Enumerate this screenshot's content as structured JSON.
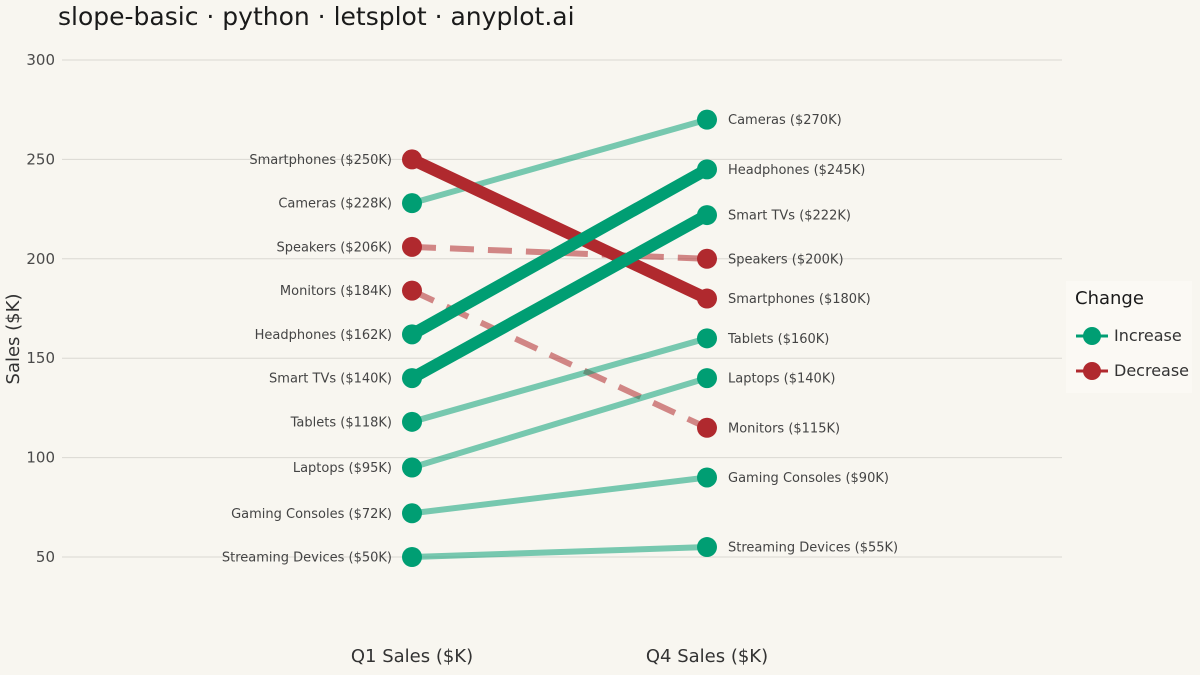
{
  "title": "slope-basic · python · letsplot · anyplot.ai",
  "chart_data": {
    "type": "line",
    "title": "slope-basic · python · letsplot · anyplot.ai",
    "xlabel": "",
    "ylabel": "Sales ($K)",
    "categories": [
      "Q1 Sales ($K)",
      "Q4 Sales ($K)"
    ],
    "ylim": [
      25,
      325
    ],
    "yticks": [
      "50",
      "100",
      "150",
      "200",
      "250",
      "300"
    ],
    "grid": true,
    "legend_position": "right",
    "legend": {
      "title": "Change",
      "entries": [
        {
          "label": "Increase",
          "color": "#009E73"
        },
        {
          "label": "Decrease",
          "color": "#B0292E"
        }
      ]
    },
    "series": [
      {
        "name": "Smartphones",
        "values": [
          250,
          180
        ],
        "change": "Decrease",
        "emphasis": "major",
        "labels": [
          "Smartphones ($250K)",
          "Smartphones ($180K)"
        ]
      },
      {
        "name": "Cameras",
        "values": [
          228,
          270
        ],
        "change": "Increase",
        "emphasis": "minor",
        "labels": [
          "Cameras ($228K)",
          "Cameras ($270K)"
        ]
      },
      {
        "name": "Speakers",
        "values": [
          206,
          200
        ],
        "change": "Decrease",
        "emphasis": "minor",
        "labels": [
          "Speakers ($206K)",
          "Speakers ($200K)"
        ]
      },
      {
        "name": "Monitors",
        "values": [
          184,
          115
        ],
        "change": "Decrease",
        "emphasis": "minor",
        "labels": [
          "Monitors ($184K)",
          "Monitors ($115K)"
        ]
      },
      {
        "name": "Headphones",
        "values": [
          162,
          245
        ],
        "change": "Increase",
        "emphasis": "major",
        "labels": [
          "Headphones ($162K)",
          "Headphones ($245K)"
        ]
      },
      {
        "name": "Smart TVs",
        "values": [
          140,
          222
        ],
        "change": "Increase",
        "emphasis": "major",
        "labels": [
          "Smart TVs ($140K)",
          "Smart TVs ($222K)"
        ]
      },
      {
        "name": "Tablets",
        "values": [
          118,
          160
        ],
        "change": "Increase",
        "emphasis": "minor",
        "labels": [
          "Tablets ($118K)",
          "Tablets ($160K)"
        ]
      },
      {
        "name": "Laptops",
        "values": [
          95,
          140
        ],
        "change": "Increase",
        "emphasis": "minor",
        "labels": [
          "Laptops ($95K)",
          "Laptops ($140K)"
        ]
      },
      {
        "name": "Gaming Consoles",
        "values": [
          72,
          90
        ],
        "change": "Increase",
        "emphasis": "minor",
        "labels": [
          "Gaming Consoles ($72K)",
          "Gaming Consoles ($90K)"
        ]
      },
      {
        "name": "Streaming Devices",
        "values": [
          50,
          55
        ],
        "change": "Increase",
        "emphasis": "minor",
        "labels": [
          "Streaming Devices ($50K)",
          "Streaming Devices ($55K)"
        ]
      }
    ]
  },
  "colors": {
    "increase": "#009E73",
    "decrease": "#B0292E",
    "background": "#F8F6F0",
    "grid": "#DAD8D2"
  }
}
